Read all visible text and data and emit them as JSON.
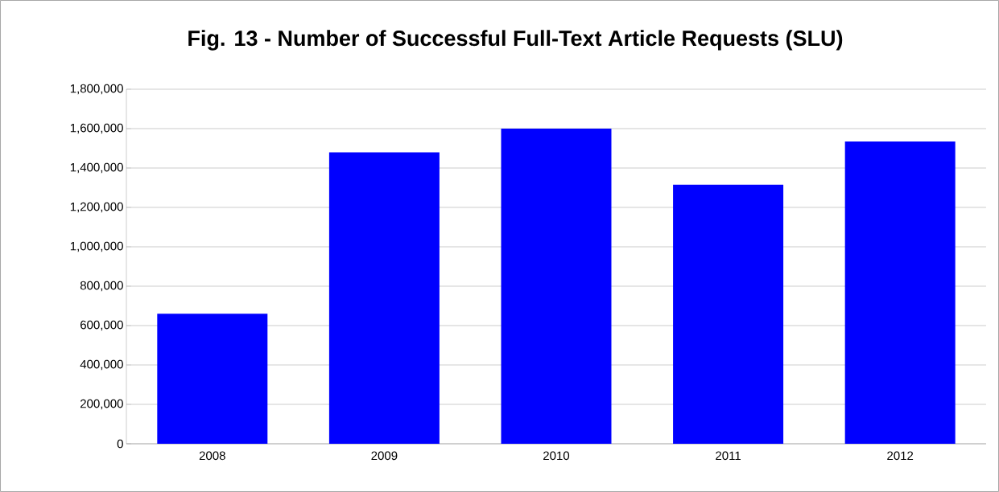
{
  "chart_data": {
    "type": "bar",
    "title": "Fig. 13 - Number of Successful Full-Text Article Requests (SLU)",
    "categories": [
      "2008",
      "2009",
      "2010",
      "2011",
      "2012"
    ],
    "values": [
      660000,
      1480000,
      1600000,
      1315000,
      1535000
    ],
    "color": "#0000ff",
    "ylim": [
      0,
      1800000
    ],
    "yticks": [
      {
        "value": 0,
        "label": "0"
      },
      {
        "value": 200000,
        "label": "200,000"
      },
      {
        "value": 400000,
        "label": "400,000"
      },
      {
        "value": 600000,
        "label": "600,000"
      },
      {
        "value": 800000,
        "label": "800,000"
      },
      {
        "value": 1000000,
        "label": "1,000,000"
      },
      {
        "value": 1200000,
        "label": "1,200,000"
      },
      {
        "value": 1400000,
        "label": "1,400,000"
      },
      {
        "value": 1600000,
        "label": "1,600,000"
      },
      {
        "value": 1800000,
        "label": "1,800,000"
      }
    ],
    "grid": "y"
  }
}
